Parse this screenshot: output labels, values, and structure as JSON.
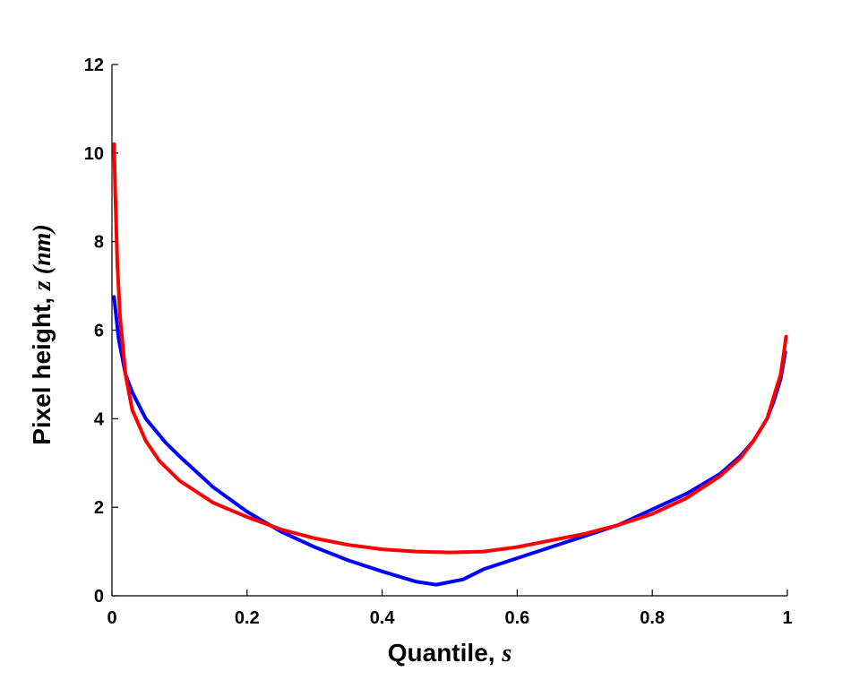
{
  "chart_data": {
    "type": "line",
    "xlabel_text": "Quantile, ",
    "xlabel_symbol": "s",
    "ylabel_text": "Pixel height, ",
    "ylabel_symbol": "z (nm)",
    "xlim": [
      0,
      1
    ],
    "ylim": [
      0,
      12
    ],
    "xticks": [
      0,
      0.2,
      0.4,
      0.6,
      0.8,
      1
    ],
    "xtick_labels": [
      "0",
      "0.2",
      "0.4",
      "0.6",
      "0.8",
      "1"
    ],
    "yticks": [
      0,
      2,
      4,
      6,
      8,
      10,
      12
    ],
    "ytick_labels": [
      "0",
      "2",
      "4",
      "6",
      "8",
      "10",
      "12"
    ],
    "grid": false,
    "series": [
      {
        "color": "#0000ff",
        "x": [
          0.003,
          0.01,
          0.02,
          0.03,
          0.05,
          0.08,
          0.1,
          0.15,
          0.2,
          0.25,
          0.3,
          0.35,
          0.4,
          0.45,
          0.48,
          0.52,
          0.55,
          0.6,
          0.65,
          0.7,
          0.75,
          0.8,
          0.85,
          0.9,
          0.93,
          0.95,
          0.97,
          0.98,
          0.99,
          0.997
        ],
        "y": [
          6.75,
          5.8,
          5.0,
          4.6,
          4.0,
          3.45,
          3.15,
          2.45,
          1.9,
          1.45,
          1.1,
          0.8,
          0.55,
          0.32,
          0.25,
          0.37,
          0.6,
          0.85,
          1.1,
          1.35,
          1.6,
          1.95,
          2.3,
          2.75,
          3.15,
          3.5,
          4.0,
          4.4,
          4.9,
          5.5
        ]
      },
      {
        "color": "#ff0000",
        "x": [
          0.003,
          0.005,
          0.008,
          0.012,
          0.02,
          0.03,
          0.05,
          0.07,
          0.1,
          0.15,
          0.2,
          0.25,
          0.3,
          0.35,
          0.4,
          0.45,
          0.5,
          0.55,
          0.6,
          0.65,
          0.7,
          0.75,
          0.8,
          0.85,
          0.9,
          0.93,
          0.95,
          0.97,
          0.98,
          0.99,
          0.995,
          0.998
        ],
        "y": [
          10.2,
          9.0,
          7.5,
          6.3,
          5.0,
          4.2,
          3.5,
          3.05,
          2.6,
          2.1,
          1.78,
          1.5,
          1.3,
          1.15,
          1.05,
          1.0,
          0.98,
          1.0,
          1.1,
          1.25,
          1.4,
          1.6,
          1.85,
          2.2,
          2.7,
          3.1,
          3.5,
          4.0,
          4.5,
          5.0,
          5.5,
          5.85
        ]
      }
    ]
  }
}
